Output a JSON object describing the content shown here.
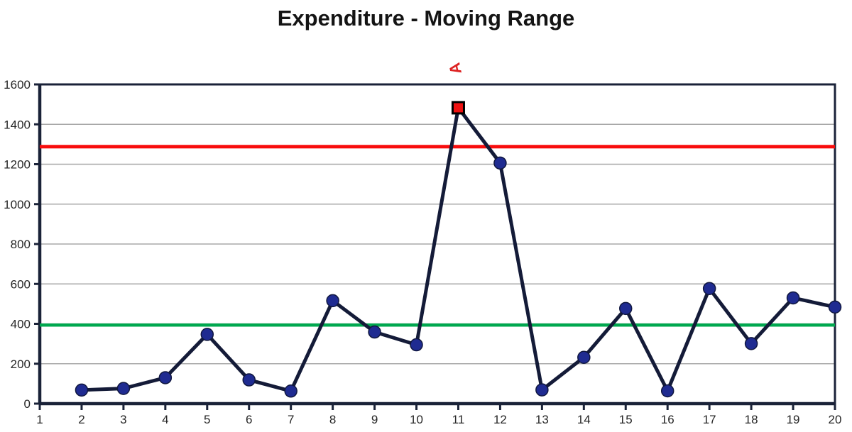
{
  "chart_data": {
    "type": "line",
    "title": "Expenditure - Moving Range",
    "x_axis": {
      "min": 1,
      "max": 20,
      "tick_values": [
        1,
        2,
        3,
        4,
        5,
        6,
        7,
        8,
        9,
        10,
        11,
        12,
        13,
        14,
        15,
        16,
        17,
        18,
        19,
        20
      ],
      "tick_labels": [
        "1",
        "2",
        "3",
        "4",
        "5",
        "6",
        "7",
        "8",
        "9",
        "10",
        "11",
        "12",
        "13",
        "14",
        "15",
        "16",
        "17",
        "18",
        "19",
        "20"
      ]
    },
    "y_axis": {
      "min": 0,
      "max": 1600,
      "step": 200,
      "tick_values": [
        0,
        200,
        400,
        600,
        800,
        1000,
        1200,
        1400,
        1600
      ],
      "tick_labels": [
        "0",
        "200",
        "400",
        "600",
        "800",
        "1000",
        "1200",
        "1400",
        "1600"
      ],
      "gridline_values": [
        200,
        400,
        600,
        800,
        1000,
        1200,
        1400
      ]
    },
    "series": [
      {
        "name": "Moving Range",
        "line_color": "#141b38",
        "marker_color": "#1f2b91",
        "marker_edge": "#10173f",
        "points": [
          {
            "x": 2,
            "y": 68
          },
          {
            "x": 3,
            "y": 76
          },
          {
            "x": 4,
            "y": 130
          },
          {
            "x": 5,
            "y": 347
          },
          {
            "x": 6,
            "y": 119
          },
          {
            "x": 7,
            "y": 63
          },
          {
            "x": 8,
            "y": 516
          },
          {
            "x": 9,
            "y": 359
          },
          {
            "x": 10,
            "y": 295
          },
          {
            "x": 11,
            "y": 1483
          },
          {
            "x": 12,
            "y": 1206
          },
          {
            "x": 13,
            "y": 69
          },
          {
            "x": 14,
            "y": 232
          },
          {
            "x": 15,
            "y": 477
          },
          {
            "x": 16,
            "y": 64
          },
          {
            "x": 17,
            "y": 577
          },
          {
            "x": 18,
            "y": 301
          },
          {
            "x": 19,
            "y": 530
          },
          {
            "x": 20,
            "y": 484
          }
        ]
      }
    ],
    "control_lines": [
      {
        "name": "upper-control-limit",
        "value": 1288,
        "color": "#f80d0d"
      },
      {
        "name": "center-line",
        "value": 394,
        "color": "#00a84f"
      }
    ],
    "highlight_point": {
      "x": 11,
      "y": 1483,
      "marker": "square",
      "fill": "#ee1111",
      "border": "#000000"
    },
    "annotation": {
      "text": "A",
      "color": "#dd2222"
    },
    "grid": true,
    "legend": false,
    "colors": {
      "axis": "#1a2238",
      "gridline": "#a8a8a8",
      "tick_label": "#262626",
      "title": "#141414",
      "background": "#ffffff"
    }
  }
}
